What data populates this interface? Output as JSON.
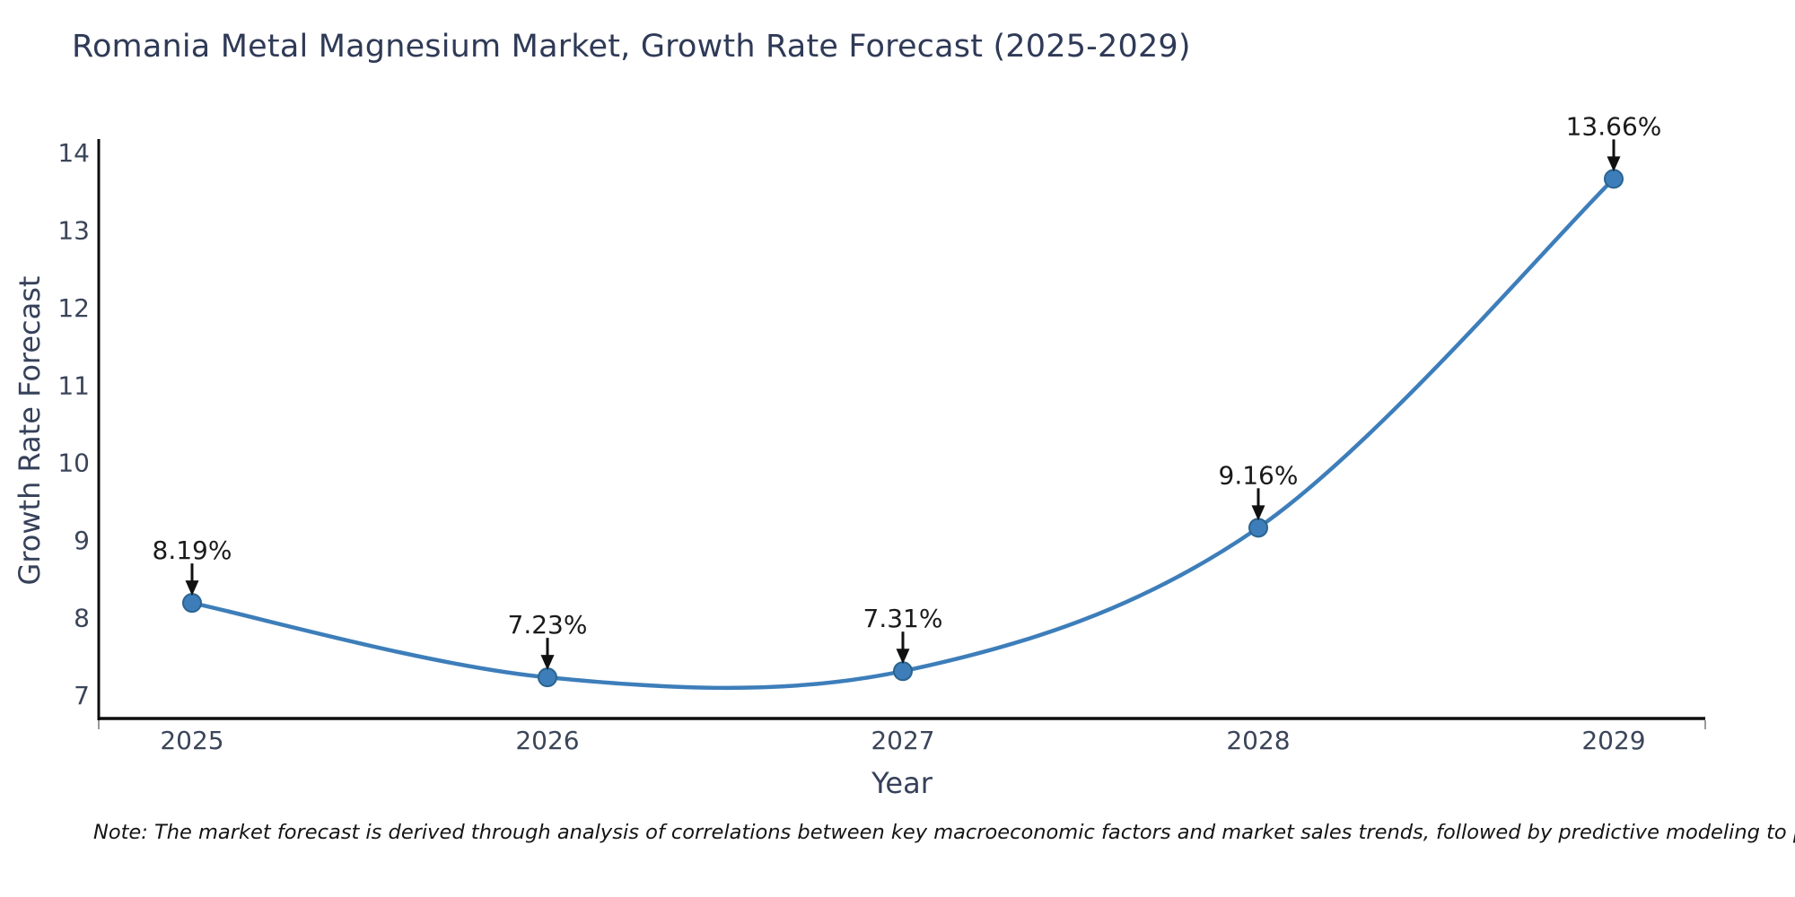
{
  "page": {
    "note": "Note: The market forecast is derived through analysis of correlations between key macroeconomic factors and market sales trends, followed by predictive modeling to project future sales"
  },
  "chart_data": {
    "type": "line",
    "title": "Romania Metal Magnesium Market, Growth Rate Forecast (2025-2029)",
    "xlabel": "Year",
    "ylabel": "Growth Rate Forecast",
    "categories": [
      "2025",
      "2026",
      "2027",
      "2028",
      "2029"
    ],
    "values": [
      8.19,
      7.23,
      7.31,
      9.16,
      13.66
    ],
    "point_labels": [
      "8.19%",
      "7.23%",
      "7.31%",
      "9.16%",
      "13.66%"
    ],
    "yticks": [
      7,
      8,
      9,
      10,
      11,
      12,
      13,
      14
    ],
    "ylim": [
      7,
      14
    ],
    "grid": false,
    "legend": "none",
    "smooth": true,
    "line_color": "#3d7eba",
    "marker_color": "#3d7eba",
    "marker_edge_color": "#2a648f",
    "axis_color": "#0d0d0d",
    "tick_color": "#3b4559",
    "title_color": "#2f3a57",
    "annotation_color": "#1a1a1a",
    "arrow_color": "#111111"
  }
}
